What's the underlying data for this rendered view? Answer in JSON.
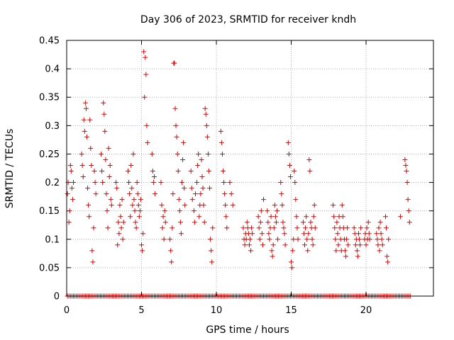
{
  "chart_data": {
    "type": "scatter",
    "title": "Day 306 of 2023, SRMTID for receiver kndh",
    "xlabel": "GPS time / hours",
    "ylabel": "SRMTID / TECUs",
    "xlim": [
      0,
      24.5
    ],
    "ylim": [
      0,
      0.45
    ],
    "xticks": [
      0,
      5,
      10,
      15,
      20
    ],
    "yticks": [
      0,
      0.05,
      0.1,
      0.15,
      0.2,
      0.25,
      0.3,
      0.35,
      0.4,
      0.45
    ],
    "grid": true,
    "marker": "+",
    "color": "#dd0000",
    "series": [
      {
        "name": "SRMTID",
        "x": [
          0.05,
          0.1,
          0.15,
          0.2,
          0.25,
          0.3,
          0.35,
          0.4,
          0.45,
          1.0,
          1.05,
          1.1,
          1.15,
          1.2,
          1.25,
          1.3,
          1.35,
          1.4,
          1.45,
          1.5,
          1.55,
          1.6,
          1.65,
          1.7,
          1.75,
          1.8,
          1.85,
          1.9,
          1.95,
          2.3,
          2.35,
          2.4,
          2.45,
          2.5,
          2.55,
          2.6,
          2.65,
          2.7,
          2.75,
          2.8,
          2.85,
          2.9,
          2.95,
          3.0,
          3.3,
          3.35,
          3.4,
          3.45,
          3.5,
          3.55,
          3.6,
          3.65,
          3.7,
          3.75,
          3.8,
          4.1,
          4.15,
          4.2,
          4.25,
          4.3,
          4.35,
          4.4,
          4.45,
          4.5,
          4.55,
          4.6,
          4.65,
          4.7,
          4.75,
          4.8,
          4.85,
          4.9,
          4.95,
          5.0,
          5.05,
          5.1,
          5.15,
          5.2,
          5.25,
          5.3,
          5.35,
          5.4,
          5.7,
          5.75,
          5.8,
          5.85,
          5.9,
          6.3,
          6.35,
          6.4,
          6.45,
          6.5,
          6.55,
          6.6,
          6.9,
          6.95,
          7.0,
          7.05,
          7.1,
          7.15,
          7.2,
          7.25,
          7.3,
          7.35,
          7.4,
          7.45,
          7.5,
          7.55,
          7.6,
          7.65,
          7.7,
          7.75,
          7.8,
          7.85,
          7.9,
          8.3,
          8.35,
          8.4,
          8.5,
          8.55,
          8.6,
          8.7,
          8.75,
          8.8,
          8.85,
          8.9,
          8.95,
          9.0,
          9.05,
          9.1,
          9.15,
          9.2,
          9.25,
          9.3,
          9.35,
          9.4,
          9.45,
          9.5,
          9.55,
          9.6,
          9.65,
          9.7,
          9.75,
          10.3,
          10.35,
          10.4,
          10.45,
          10.5,
          10.55,
          10.6,
          10.65,
          10.7,
          10.9,
          11.0,
          11.1,
          11.8,
          11.85,
          11.9,
          11.95,
          12.0,
          12.05,
          12.1,
          12.15,
          12.2,
          12.25,
          12.3,
          12.35,
          12.4,
          12.8,
          12.85,
          12.9,
          12.95,
          13.0,
          13.05,
          13.1,
          13.15,
          13.4,
          13.45,
          13.5,
          13.55,
          13.6,
          13.65,
          13.7,
          13.75,
          13.8,
          13.85,
          13.9,
          13.95,
          14.0,
          14.05,
          14.1,
          14.3,
          14.35,
          14.4,
          14.45,
          14.5,
          14.55,
          14.6,
          14.8,
          14.85,
          14.9,
          14.95,
          15.0,
          15.05,
          15.1,
          15.15,
          15.2,
          15.25,
          15.3,
          15.35,
          15.4,
          15.45,
          15.8,
          15.85,
          15.9,
          15.95,
          16.0,
          16.05,
          16.1,
          16.15,
          16.2,
          16.25,
          16.3,
          16.35,
          16.4,
          16.45,
          16.5,
          16.55,
          16.6,
          17.8,
          17.85,
          17.9,
          17.95,
          18.0,
          18.05,
          18.1,
          18.15,
          18.2,
          18.25,
          18.3,
          18.35,
          18.4,
          18.45,
          18.5,
          18.55,
          18.6,
          18.65,
          18.7,
          18.75,
          18.8,
          19.2,
          19.25,
          19.3,
          19.35,
          19.4,
          19.45,
          19.5,
          19.55,
          19.6,
          19.65,
          19.9,
          19.95,
          20.0,
          20.05,
          20.1,
          20.15,
          20.2,
          20.25,
          20.7,
          20.75,
          20.8,
          20.85,
          20.9,
          20.95,
          21.0,
          21.05,
          21.1,
          21.3,
          21.35,
          21.4,
          21.45,
          21.5,
          22.3,
          22.6,
          22.65,
          22.7,
          22.75,
          22.8,
          22.85,
          22.9
        ],
        "y": [
          0.18,
          0.2,
          0.13,
          0.15,
          0.23,
          0.22,
          0.19,
          0.17,
          0.2,
          0.25,
          0.23,
          0.21,
          0.31,
          0.29,
          0.34,
          0.33,
          0.28,
          0.19,
          0.16,
          0.14,
          0.31,
          0.26,
          0.23,
          0.08,
          0.06,
          0.12,
          0.22,
          0.2,
          0.18,
          0.25,
          0.22,
          0.2,
          0.34,
          0.32,
          0.29,
          0.24,
          0.18,
          0.15,
          0.12,
          0.26,
          0.21,
          0.23,
          0.17,
          0.16,
          0.2,
          0.19,
          0.09,
          0.13,
          0.11,
          0.16,
          0.14,
          0.12,
          0.17,
          0.1,
          0.13,
          0.22,
          0.2,
          0.18,
          0.14,
          0.23,
          0.19,
          0.16,
          0.25,
          0.17,
          0.15,
          0.13,
          0.12,
          0.2,
          0.18,
          0.16,
          0.14,
          0.15,
          0.17,
          0.09,
          0.08,
          0.11,
          0.43,
          0.35,
          0.42,
          0.39,
          0.3,
          0.27,
          0.25,
          0.22,
          0.2,
          0.21,
          0.18,
          0.2,
          0.16,
          0.12,
          0.14,
          0.1,
          0.15,
          0.13,
          0.1,
          0.08,
          0.06,
          0.12,
          0.18,
          0.41,
          0.41,
          0.33,
          0.3,
          0.28,
          0.25,
          0.22,
          0.17,
          0.15,
          0.13,
          0.11,
          0.2,
          0.24,
          0.27,
          0.19,
          0.16,
          0.22,
          0.19,
          0.17,
          0.15,
          0.13,
          0.18,
          0.2,
          0.23,
          0.25,
          0.14,
          0.16,
          0.18,
          0.24,
          0.21,
          0.19,
          0.16,
          0.13,
          0.33,
          0.32,
          0.3,
          0.28,
          0.25,
          0.22,
          0.19,
          0.1,
          0.08,
          0.06,
          0.12,
          0.29,
          0.27,
          0.25,
          0.22,
          0.2,
          0.18,
          0.16,
          0.14,
          0.12,
          0.2,
          0.18,
          0.16,
          0.12,
          0.1,
          0.09,
          0.11,
          0.1,
          0.13,
          0.12,
          0.11,
          0.09,
          0.1,
          0.08,
          0.12,
          0.11,
          0.14,
          0.12,
          0.1,
          0.13,
          0.15,
          0.11,
          0.09,
          0.17,
          0.15,
          0.13,
          0.11,
          0.1,
          0.12,
          0.14,
          0.08,
          0.07,
          0.09,
          0.12,
          0.16,
          0.14,
          0.13,
          0.15,
          0.1,
          0.2,
          0.18,
          0.16,
          0.13,
          0.12,
          0.11,
          0.09,
          0.27,
          0.25,
          0.23,
          0.21,
          0.06,
          0.05,
          0.08,
          0.1,
          0.22,
          0.2,
          0.17,
          0.14,
          0.12,
          0.1,
          0.13,
          0.11,
          0.09,
          0.12,
          0.14,
          0.1,
          0.08,
          0.11,
          0.24,
          0.22,
          0.13,
          0.12,
          0.1,
          0.09,
          0.14,
          0.16,
          0.12,
          0.16,
          0.14,
          0.12,
          0.1,
          0.08,
          0.13,
          0.11,
          0.09,
          0.14,
          0.12,
          0.1,
          0.08,
          0.16,
          0.14,
          0.12,
          0.1,
          0.08,
          0.07,
          0.1,
          0.12,
          0.09,
          0.12,
          0.11,
          0.09,
          0.1,
          0.08,
          0.07,
          0.11,
          0.1,
          0.09,
          0.12,
          0.1,
          0.11,
          0.09,
          0.12,
          0.1,
          0.13,
          0.11,
          0.1,
          0.11,
          0.1,
          0.09,
          0.12,
          0.08,
          0.13,
          0.11,
          0.1,
          0.09,
          0.14,
          0.12,
          0.07,
          0.06,
          0.1,
          0.14,
          0.24,
          0.23,
          0.22,
          0.2,
          0.17,
          0.15,
          0.13
        ]
      }
    ],
    "zero_points": {
      "y": 0,
      "x_start": 0.05,
      "x_end": 22.95,
      "step": 0.1
    }
  }
}
